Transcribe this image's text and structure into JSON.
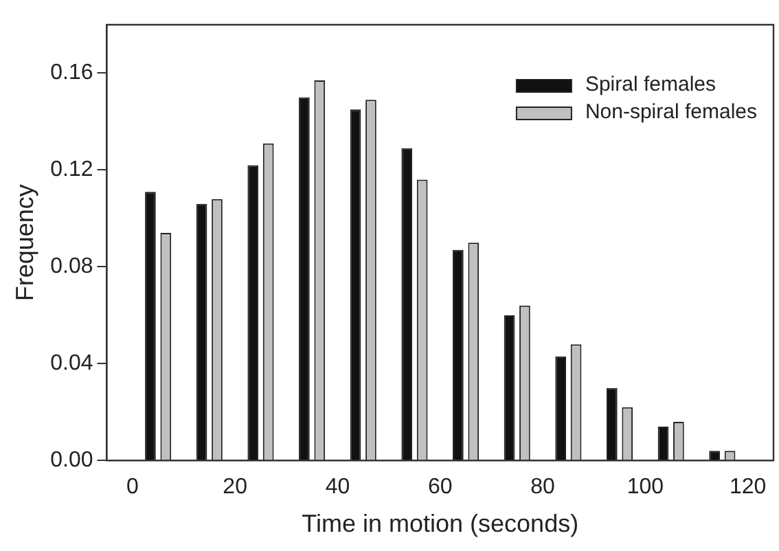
{
  "chart_data": {
    "type": "bar",
    "xlabel": "Time in motion (seconds)",
    "ylabel": "Frequency",
    "x": [
      5,
      15,
      25,
      35,
      45,
      55,
      65,
      75,
      85,
      95,
      105,
      115
    ],
    "series": [
      {
        "name": "Spiral females",
        "color": "#111111",
        "values": [
          0.111,
          0.106,
          0.122,
          0.15,
          0.145,
          0.129,
          0.087,
          0.06,
          0.043,
          0.03,
          0.014,
          0.004
        ]
      },
      {
        "name": "Non-spiral females",
        "color": "#c0c0c0",
        "values": [
          0.094,
          0.108,
          0.131,
          0.157,
          0.149,
          0.116,
          0.09,
          0.064,
          0.048,
          0.022,
          0.016,
          0.004
        ]
      }
    ],
    "xlim": [
      -5,
      125
    ],
    "xticks": [
      0,
      20,
      40,
      60,
      80,
      100,
      120
    ],
    "ylim": [
      0,
      0.18
    ],
    "yticks": [
      {
        "value": 0,
        "label": "0.00"
      },
      {
        "value": 0.04,
        "label": "0.04"
      },
      {
        "value": 0.08,
        "label": "0.08"
      },
      {
        "value": 0.12,
        "label": "0.12"
      },
      {
        "value": 0.16,
        "label": "0.16"
      }
    ],
    "grid": false,
    "legend": "top right"
  }
}
